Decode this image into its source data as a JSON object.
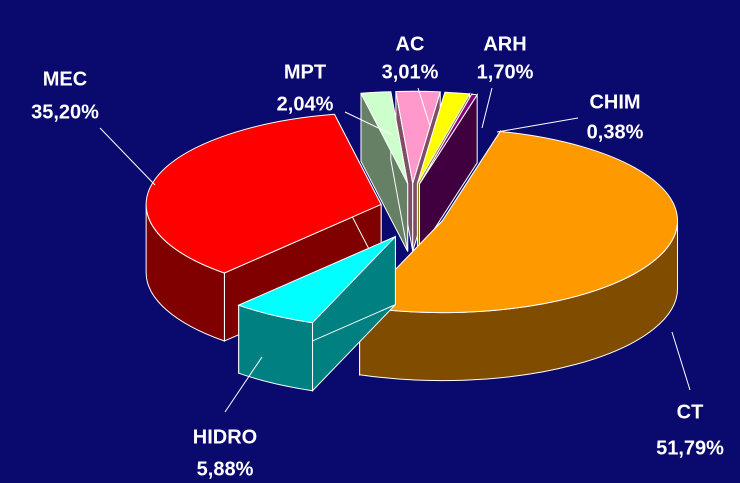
{
  "chart_data": {
    "type": "pie3d",
    "categories": [
      "MPT",
      "AC",
      "ARH",
      "CHIM",
      "CT",
      "HIDRO",
      "MEC"
    ],
    "values": [
      2.04,
      3.01,
      1.7,
      0.38,
      51.79,
      5.88,
      35.2
    ],
    "value_labels": [
      "2,04%",
      "3,01%",
      "1,70%",
      "0,38%",
      "51,79%",
      "5,88%",
      "35,20%"
    ],
    "colors": [
      "#ccffcc",
      "#ff99cc",
      "#ffff00",
      "#800080",
      "#ff9900",
      "#00ffff",
      "#ff0000"
    ]
  }
}
